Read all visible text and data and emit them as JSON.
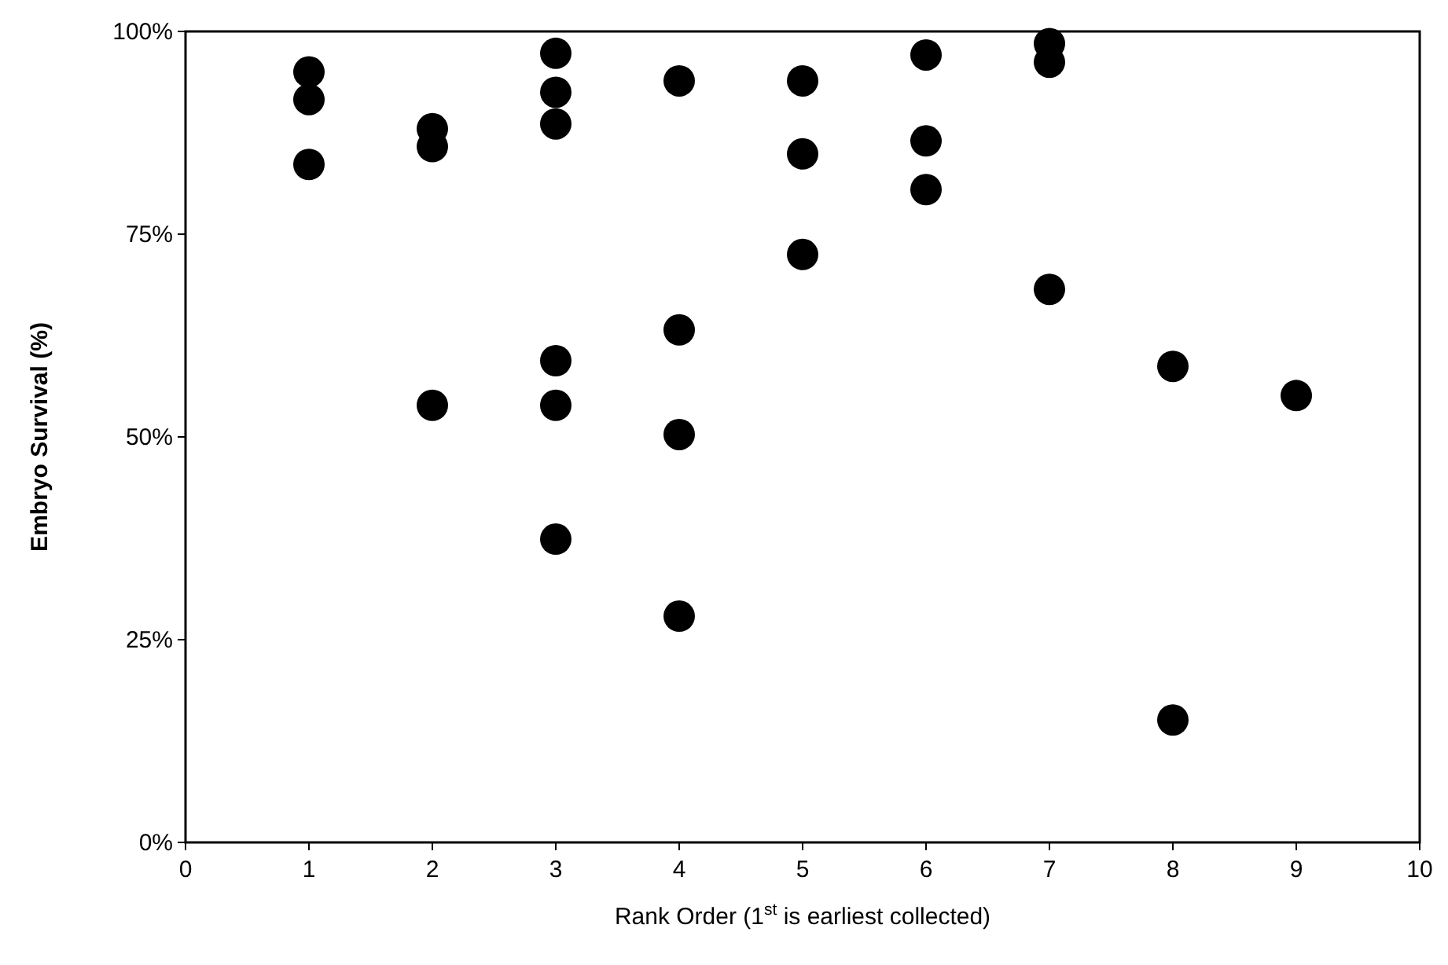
{
  "chart_data": {
    "type": "scatter",
    "xlabel": "Rank Order (1$^{st}$ is earliest collected)",
    "ylabel": "Embryo Survival (%)",
    "x": [
      1,
      1,
      1,
      2,
      2,
      2,
      3,
      3,
      3,
      3,
      3,
      3,
      4,
      4,
      4,
      4,
      5,
      5,
      5,
      6,
      6,
      6,
      7,
      7,
      7,
      8,
      8,
      9
    ],
    "series": [
      {
        "color": "#000000",
        "values": [
          95.0,
          91.6,
          83.6,
          88.0,
          85.8,
          53.9,
          97.3,
          92.5,
          88.6,
          59.4,
          53.9,
          37.4,
          93.9,
          63.2,
          50.3,
          27.9,
          93.9,
          84.9,
          72.5,
          97.1,
          86.5,
          80.5,
          98.5,
          96.2,
          68.2,
          58.7,
          15.1,
          55.1
        ]
      }
    ],
    "xlim": [
      0,
      10
    ],
    "xticks": [
      0,
      1,
      2,
      3,
      4,
      5,
      6,
      7,
      8,
      9,
      10
    ],
    "ylim": [
      0,
      100
    ],
    "yticks": [
      {
        "value": 0,
        "label": "0%"
      },
      {
        "value": 25,
        "label": "25%"
      },
      {
        "value": 50,
        "label": "50%"
      },
      {
        "value": 75,
        "label": "75%"
      },
      {
        "value": 100,
        "label": "100%"
      }
    ],
    "marker": "circle"
  }
}
